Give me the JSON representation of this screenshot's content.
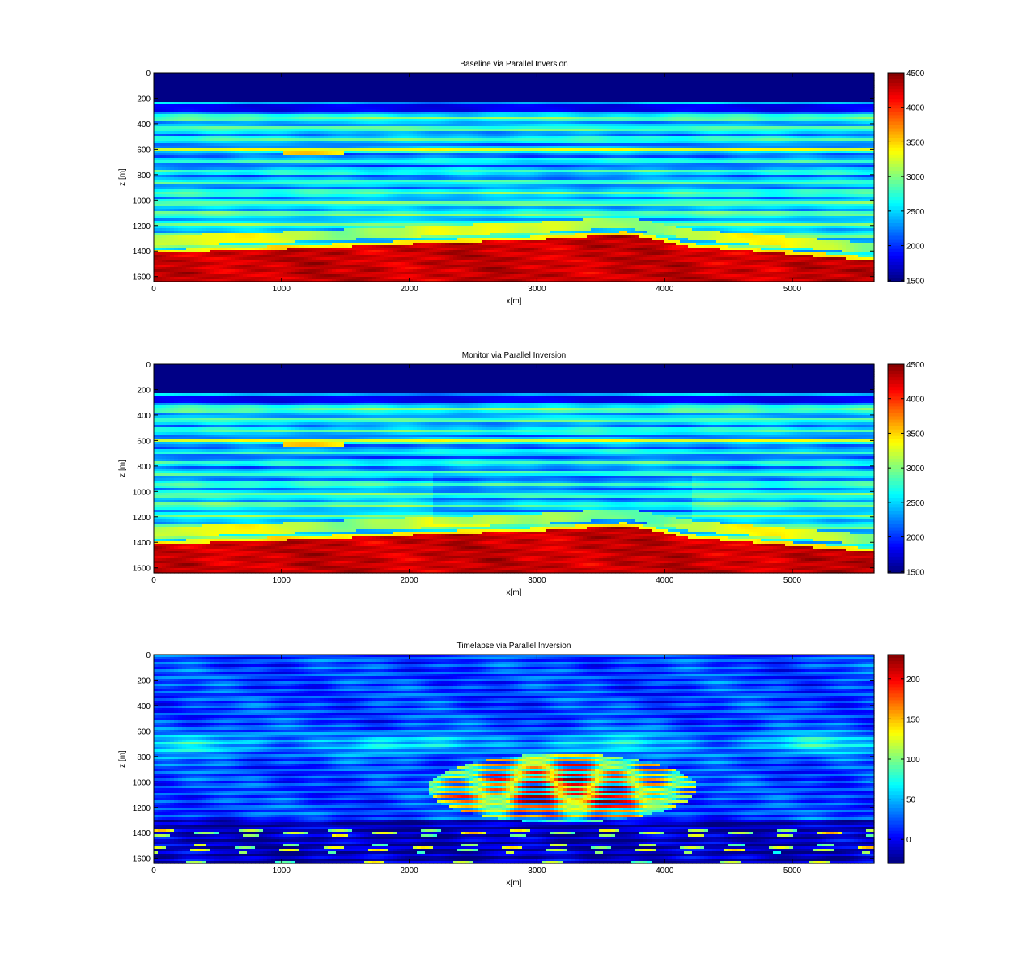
{
  "chart_data": [
    {
      "type": "heatmap",
      "title": "Baseline via Parallel Inversion",
      "xlabel": "x[m]",
      "ylabel": "z [m]",
      "xlim": [
        0,
        5640
      ],
      "ylim": [
        1640,
        0
      ],
      "x_ticks": [
        0,
        1000,
        2000,
        3000,
        4000,
        5000
      ],
      "y_ticks": [
        0,
        200,
        400,
        600,
        800,
        1000,
        1200,
        1400,
        1600
      ],
      "colormap": "jet",
      "clim": [
        1480,
        4500
      ],
      "colorbar_ticks": [
        1500,
        2000,
        2500,
        3000,
        3500,
        4000,
        4500
      ],
      "features": {
        "water_layer_bottom_z": 230,
        "water_velocity": 1500,
        "layer_velocity_range": [
          1800,
          3400
        ],
        "bright_reflector_z": 600,
        "lens_reflector": {
          "x": [
            1000,
            1500
          ],
          "z": 625
        },
        "high_velocity_top": [
          [
            0,
            1390
          ],
          [
            1000,
            1360
          ],
          [
            2000,
            1320
          ],
          [
            3000,
            1285
          ],
          [
            3700,
            1245
          ],
          [
            4200,
            1340
          ],
          [
            5640,
            1450
          ]
        ],
        "high_velocity_range": [
          3700,
          4500
        ]
      }
    },
    {
      "type": "heatmap",
      "title": "Monitor via Parallel Inversion",
      "xlabel": "x[m]",
      "ylabel": "z [m]",
      "xlim": [
        0,
        5640
      ],
      "ylim": [
        1640,
        0
      ],
      "x_ticks": [
        0,
        1000,
        2000,
        3000,
        4000,
        5000
      ],
      "y_ticks": [
        0,
        200,
        400,
        600,
        800,
        1000,
        1200,
        1400,
        1600
      ],
      "colormap": "jet",
      "clim": [
        1480,
        4500
      ],
      "colorbar_ticks": [
        1500,
        2000,
        2500,
        3000,
        3500,
        4000,
        4500
      ],
      "features": {
        "water_layer_bottom_z": 230,
        "water_velocity": 1500,
        "layer_velocity_range": [
          1800,
          3400
        ],
        "bright_reflector_z": 600,
        "lens_reflector": {
          "x": [
            1000,
            1500
          ],
          "z": 625
        },
        "high_velocity_top": [
          [
            0,
            1390
          ],
          [
            1000,
            1360
          ],
          [
            2000,
            1320
          ],
          [
            3000,
            1285
          ],
          [
            3700,
            1245
          ],
          [
            4200,
            1340
          ],
          [
            5640,
            1450
          ]
        ],
        "high_velocity_range": [
          3700,
          4500
        ],
        "slowed_zone": {
          "x": [
            2200,
            4200
          ],
          "z": [
            850,
            1250
          ],
          "delta": -150
        }
      }
    },
    {
      "type": "heatmap",
      "title": "Timelapse via Parallel Inversion",
      "xlabel": "x[m]",
      "ylabel": "z [m]",
      "xlim": [
        0,
        5640
      ],
      "ylim": [
        1640,
        0
      ],
      "x_ticks": [
        0,
        1000,
        2000,
        3000,
        4000,
        5000
      ],
      "y_ticks": [
        0,
        200,
        400,
        600,
        800,
        1000,
        1200,
        1400,
        1600
      ],
      "colormap": "jet",
      "clim": [
        -30,
        230
      ],
      "colorbar_ticks": [
        0,
        50,
        100,
        150,
        200
      ],
      "features": {
        "background_value": 20,
        "anomaly": {
          "x_center": 3200,
          "z_center": 1050,
          "x_range": [
            2200,
            4300
          ],
          "z_range": [
            760,
            1300
          ],
          "peak": 230
        },
        "shallow_halo": {
          "z": 700,
          "value": 70
        },
        "deep_streaks_z": [
          1300,
          1600
        ]
      }
    }
  ]
}
